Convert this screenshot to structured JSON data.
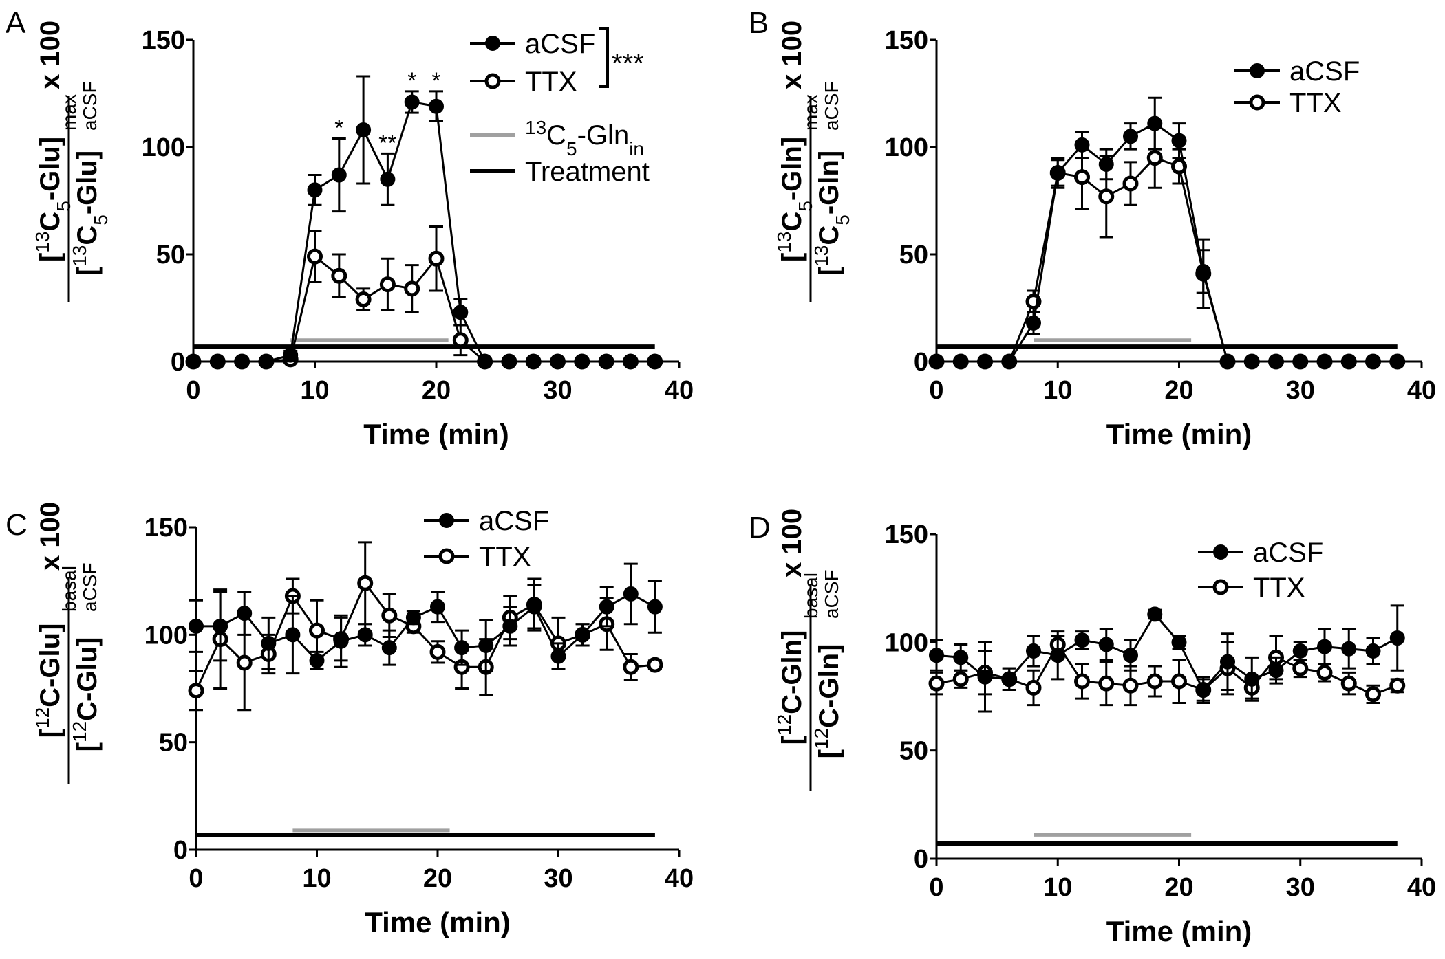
{
  "chart_data": [
    {
      "panel": "A",
      "type": "line",
      "xlabel": "Time (min)",
      "xlim": [
        0,
        40
      ],
      "ylim": [
        0,
        150
      ],
      "xticks": [
        0,
        10,
        20,
        30,
        40
      ],
      "yticks": [
        0,
        50,
        100,
        150
      ],
      "ylabel": {
        "num": [
          [
            "[",
            ""
          ],
          [
            "13",
            "sup"
          ],
          [
            "C",
            ""
          ],
          [
            "5",
            "sub"
          ],
          [
            "-Glu]",
            ""
          ]
        ],
        "den": [
          [
            "[",
            ""
          ],
          [
            "13",
            "sup"
          ],
          [
            "C",
            ""
          ],
          [
            "5",
            "sub"
          ],
          [
            "-Glu]",
            ""
          ]
        ],
        "den_sup": "max",
        "den_sub": "aCSF",
        "suffix": "x 100"
      },
      "x": [
        0,
        2,
        4,
        6,
        8,
        10,
        12,
        14,
        16,
        18,
        20,
        22,
        24,
        26,
        28,
        30,
        32,
        34,
        36,
        38
      ],
      "series": [
        {
          "name": "aCSF",
          "filled": true,
          "values": [
            0,
            0,
            0,
            0,
            3,
            80,
            87,
            108,
            85,
            121,
            119,
            23,
            0,
            0,
            0,
            0,
            0,
            0,
            0,
            0
          ],
          "err": [
            0,
            0,
            0,
            0,
            2,
            7,
            17,
            25,
            12,
            5,
            7,
            6,
            0,
            0,
            0,
            0,
            0,
            0,
            0,
            0
          ]
        },
        {
          "name": "TTX",
          "filled": false,
          "values": [
            0,
            0,
            0,
            0,
            1,
            49,
            40,
            29,
            36,
            34,
            48,
            10,
            0,
            0,
            0,
            0,
            0,
            0,
            0,
            0
          ],
          "err": [
            0,
            0,
            0,
            0,
            1,
            12,
            10,
            5,
            12,
            11,
            15,
            7,
            0,
            0,
            0,
            0,
            0,
            0,
            0,
            0
          ]
        }
      ],
      "annotations": [
        {
          "x": 12,
          "text": "*"
        },
        {
          "x": 16,
          "text": "**"
        },
        {
          "x": 18,
          "text": "*"
        },
        {
          "x": 20,
          "text": "*"
        }
      ],
      "bars": [
        {
          "name": "13C5-Glnin",
          "color": "#a0a0a0",
          "x": [
            8,
            21
          ],
          "y": 10
        },
        {
          "name": "Treatment",
          "color": "#000000",
          "x": [
            0,
            38
          ],
          "y": 7
        }
      ],
      "legend": {
        "placement": "top-right",
        "entries": [
          "aCSF",
          "TTX"
        ],
        "significance": "***",
        "bar_entries": [
          {
            "sup": "13",
            "main": "C",
            "sub": "5",
            "rest": "-Gln",
            "sub2": "in"
          },
          {
            "text": "Treatment"
          }
        ]
      }
    },
    {
      "panel": "B",
      "type": "line",
      "xlabel": "Time (min)",
      "xlim": [
        0,
        40
      ],
      "ylim": [
        0,
        150
      ],
      "xticks": [
        0,
        10,
        20,
        30,
        40
      ],
      "yticks": [
        0,
        50,
        100,
        150
      ],
      "ylabel": {
        "num": [
          [
            "[",
            ""
          ],
          [
            "13",
            "sup"
          ],
          [
            "C",
            ""
          ],
          [
            "5",
            "sub"
          ],
          [
            "-Gln]",
            ""
          ]
        ],
        "den": [
          [
            "[",
            ""
          ],
          [
            "13",
            "sup"
          ],
          [
            "C",
            ""
          ],
          [
            "5",
            "sub"
          ],
          [
            "-Gln]",
            ""
          ]
        ],
        "den_sup": "max",
        "den_sub": "aCSF",
        "suffix": "x 100"
      },
      "x": [
        0,
        2,
        4,
        6,
        8,
        10,
        12,
        14,
        16,
        18,
        20,
        22,
        24,
        26,
        28,
        30,
        32,
        34,
        36,
        38
      ],
      "series": [
        {
          "name": "aCSF",
          "filled": true,
          "values": [
            0,
            0,
            0,
            0,
            18,
            88,
            101,
            92,
            105,
            111,
            103,
            42,
            0,
            0,
            0,
            0,
            0,
            0,
            0,
            0
          ],
          "err": [
            0,
            0,
            0,
            0,
            5,
            6,
            6,
            7,
            6,
            12,
            8,
            10,
            0,
            0,
            0,
            0,
            0,
            0,
            0,
            0
          ]
        },
        {
          "name": "TTX",
          "filled": false,
          "values": [
            0,
            0,
            0,
            0,
            28,
            88,
            86,
            77,
            83,
            95,
            91,
            41,
            0,
            0,
            0,
            0,
            0,
            0,
            0,
            0
          ],
          "err": [
            0,
            0,
            0,
            0,
            5,
            7,
            15,
            19,
            10,
            14,
            8,
            16,
            0,
            0,
            0,
            0,
            0,
            0,
            0,
            0
          ]
        }
      ],
      "bars": [
        {
          "name": "13C5-Glnin",
          "color": "#a0a0a0",
          "x": [
            8,
            21
          ],
          "y": 10
        },
        {
          "name": "Treatment",
          "color": "#000000",
          "x": [
            0,
            38
          ],
          "y": 7
        }
      ],
      "legend": {
        "placement": "top-right",
        "entries": [
          "aCSF",
          "TTX"
        ]
      }
    },
    {
      "panel": "C",
      "type": "line",
      "xlabel": "Time (min)",
      "xlim": [
        0,
        40
      ],
      "ylim": [
        0,
        150
      ],
      "xticks": [
        0,
        10,
        20,
        30,
        40
      ],
      "yticks": [
        0,
        50,
        100,
        150
      ],
      "ylabel": {
        "num": [
          [
            "[",
            ""
          ],
          [
            "12",
            "sup"
          ],
          [
            "C-Glu]",
            ""
          ]
        ],
        "den": [
          [
            "[",
            ""
          ],
          [
            "12",
            "sup"
          ],
          [
            "C-Glu]",
            ""
          ]
        ],
        "den_sup": "basal",
        "den_sub": "aCSF",
        "suffix": "x 100"
      },
      "x": [
        0,
        2,
        4,
        6,
        8,
        10,
        12,
        14,
        16,
        18,
        20,
        22,
        24,
        26,
        28,
        30,
        32,
        34,
        36,
        38
      ],
      "series": [
        {
          "name": "aCSF",
          "filled": true,
          "values": [
            104,
            104,
            110,
            96,
            100,
            88,
            97,
            100,
            94,
            108,
            113,
            94,
            95,
            104,
            113,
            90,
            100,
            113,
            119,
            113
          ],
          "err": [
            12,
            16,
            10,
            12,
            18,
            4,
            12,
            5,
            8,
            3,
            7,
            8,
            12,
            9,
            10,
            6,
            5,
            9,
            14,
            12
          ]
        },
        {
          "name": "TTX",
          "filled": false,
          "values": [
            74,
            98,
            87,
            91,
            118,
            102,
            98,
            124,
            109,
            104,
            92,
            85,
            85,
            108,
            114,
            96,
            100,
            105,
            85,
            86
          ],
          "err": [
            9,
            23,
            22,
            9,
            8,
            14,
            10,
            19,
            10,
            3,
            5,
            10,
            13,
            10,
            12,
            12,
            5,
            12,
            6,
            2
          ]
        }
      ],
      "bars": [
        {
          "name": "13C5-Glnin",
          "color": "#a0a0a0",
          "x": [
            8,
            21
          ],
          "y": 9
        },
        {
          "name": "Treatment",
          "color": "#000000",
          "x": [
            0,
            38
          ],
          "y": 7
        }
      ],
      "legend": {
        "placement": "top-right",
        "entries": [
          "aCSF",
          "TTX"
        ]
      }
    },
    {
      "panel": "D",
      "type": "line",
      "xlabel": "Time (min)",
      "xlim": [
        0,
        40
      ],
      "ylim": [
        0,
        150
      ],
      "xticks": [
        0,
        10,
        20,
        30,
        40
      ],
      "yticks": [
        0,
        50,
        100,
        150
      ],
      "ylabel": {
        "num": [
          [
            "[",
            ""
          ],
          [
            "12",
            "sup"
          ],
          [
            "C-Gln]",
            ""
          ]
        ],
        "den": [
          [
            "[",
            ""
          ],
          [
            "12",
            "sup"
          ],
          [
            "C-Gln]",
            ""
          ]
        ],
        "den_sup": "basal",
        "den_sub": "aCSF",
        "suffix": "x 100"
      },
      "x": [
        0,
        2,
        4,
        6,
        8,
        10,
        12,
        14,
        16,
        18,
        20,
        22,
        24,
        26,
        28,
        30,
        32,
        34,
        36,
        38
      ],
      "series": [
        {
          "name": "aCSF",
          "filled": true,
          "values": [
            94,
            93,
            84,
            83,
            96,
            94,
            101,
            99,
            94,
            113,
            100,
            78,
            91,
            83,
            87,
            96,
            98,
            97,
            96,
            102
          ],
          "err": [
            7,
            6,
            16,
            5,
            7,
            11,
            4,
            7,
            7,
            2,
            3,
            6,
            13,
            10,
            6,
            4,
            8,
            9,
            6,
            15
          ]
        },
        {
          "name": "TTX",
          "filled": false,
          "values": [
            81,
            83,
            86,
            83,
            79,
            99,
            82,
            81,
            80,
            82,
            82,
            78,
            88,
            79,
            93,
            88,
            86,
            81,
            76,
            80
          ],
          "err": [
            5,
            4,
            10,
            5,
            8,
            4,
            8,
            10,
            9,
            7,
            10,
            5,
            12,
            5,
            10,
            4,
            4,
            5,
            4,
            3
          ]
        }
      ],
      "bars": [
        {
          "name": "13C5-Glnin",
          "color": "#a0a0a0",
          "x": [
            8,
            21
          ],
          "y": 11
        },
        {
          "name": "Treatment",
          "color": "#000000",
          "x": [
            0,
            38
          ],
          "y": 7
        }
      ],
      "legend": {
        "placement": "top-right",
        "entries": [
          "aCSF",
          "TTX"
        ]
      }
    }
  ]
}
